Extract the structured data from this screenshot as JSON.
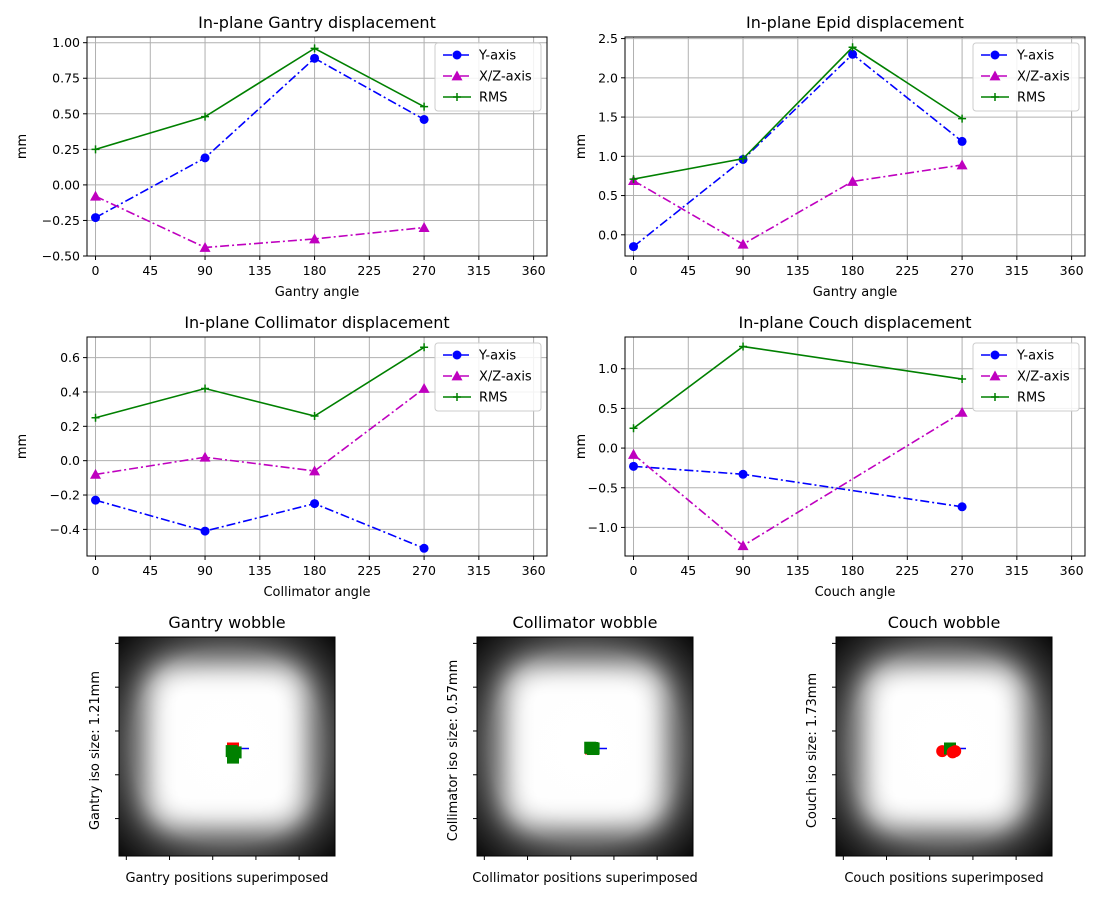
{
  "colors": {
    "y_axis": "#0000ff",
    "xz_axis": "#bf00bf",
    "rms": "#008000",
    "grid": "#b0b0b0",
    "wobble_red": "#ff0000",
    "wobble_green": "#008000",
    "wobble_blue": "#0000ff"
  },
  "chart_data": [
    {
      "type": "line",
      "title": "In-plane Gantry displacement",
      "xlabel": "Gantry angle",
      "ylabel": "mm",
      "xlim": [
        -7,
        371
      ],
      "ylim": [
        -0.5,
        1.04
      ],
      "xticks": [
        0,
        45,
        90,
        135,
        180,
        225,
        270,
        315,
        360
      ],
      "yticks": [
        -0.5,
        -0.25,
        0.0,
        0.25,
        0.5,
        0.75,
        1.0
      ],
      "ytick_labels": [
        "−0.50",
        "−0.25",
        "0.00",
        "0.25",
        "0.50",
        "0.75",
        "1.00"
      ],
      "grid": true,
      "legend": "top-right",
      "x": [
        0,
        90,
        180,
        270
      ],
      "series": [
        {
          "name": "Y-axis",
          "values": [
            -0.23,
            0.19,
            0.89,
            0.46
          ],
          "color": "#0000ff",
          "linestyle": "dashdot",
          "marker": "circle"
        },
        {
          "name": "X/Z-axis",
          "values": [
            -0.08,
            -0.44,
            -0.38,
            -0.3
          ],
          "color": "#bf00bf",
          "linestyle": "dashdot",
          "marker": "triangle"
        },
        {
          "name": "RMS",
          "values": [
            0.25,
            0.48,
            0.96,
            0.55
          ],
          "color": "#008000",
          "linestyle": "solid",
          "marker": "plus"
        }
      ]
    },
    {
      "type": "line",
      "title": "In-plane Epid displacement",
      "xlabel": "Gantry angle",
      "ylabel": "mm",
      "xlim": [
        -7,
        371
      ],
      "ylim": [
        -0.27,
        2.52
      ],
      "xticks": [
        0,
        45,
        90,
        135,
        180,
        225,
        270,
        315,
        360
      ],
      "yticks": [
        0.0,
        0.5,
        1.0,
        1.5,
        2.0,
        2.5
      ],
      "ytick_labels": [
        "0.0",
        "0.5",
        "1.0",
        "1.5",
        "2.0",
        "2.5"
      ],
      "grid": true,
      "legend": "top-right",
      "x": [
        0,
        90,
        180,
        270
      ],
      "series": [
        {
          "name": "Y-axis",
          "values": [
            -0.15,
            0.96,
            2.3,
            1.19
          ],
          "color": "#0000ff",
          "linestyle": "dashdot",
          "marker": "circle"
        },
        {
          "name": "X/Z-axis",
          "values": [
            0.69,
            -0.12,
            0.68,
            0.89
          ],
          "color": "#bf00bf",
          "linestyle": "dashdot",
          "marker": "triangle"
        },
        {
          "name": "RMS",
          "values": [
            0.71,
            0.97,
            2.39,
            1.48
          ],
          "color": "#008000",
          "linestyle": "solid",
          "marker": "plus"
        }
      ]
    },
    {
      "type": "line",
      "title": "In-plane Collimator displacement",
      "xlabel": "Collimator angle",
      "ylabel": "mm",
      "xlim": [
        -7,
        371
      ],
      "ylim": [
        -0.555,
        0.72
      ],
      "xticks": [
        0,
        45,
        90,
        135,
        180,
        225,
        270,
        315,
        360
      ],
      "yticks": [
        -0.4,
        -0.2,
        0.0,
        0.2,
        0.4,
        0.6
      ],
      "ytick_labels": [
        "−0.4",
        "−0.2",
        "0.0",
        "0.2",
        "0.4",
        "0.6"
      ],
      "grid": true,
      "legend": "top-right",
      "x": [
        0,
        90,
        180,
        270
      ],
      "series": [
        {
          "name": "Y-axis",
          "values": [
            -0.23,
            -0.41,
            -0.25,
            -0.51
          ],
          "color": "#0000ff",
          "linestyle": "dashdot",
          "marker": "circle"
        },
        {
          "name": "X/Z-axis",
          "values": [
            -0.08,
            0.02,
            -0.06,
            0.42
          ],
          "color": "#bf00bf",
          "linestyle": "dashdot",
          "marker": "triangle"
        },
        {
          "name": "RMS",
          "values": [
            0.25,
            0.42,
            0.26,
            0.66
          ],
          "color": "#008000",
          "linestyle": "solid",
          "marker": "plus"
        }
      ]
    },
    {
      "type": "line",
      "title": "In-plane Couch displacement",
      "xlabel": "Couch angle",
      "ylabel": "mm",
      "xlim": [
        -7,
        371
      ],
      "ylim": [
        -1.36,
        1.4
      ],
      "xticks": [
        0,
        45,
        90,
        135,
        180,
        225,
        270,
        315,
        360
      ],
      "yticks": [
        -1.0,
        -0.5,
        0.0,
        0.5,
        1.0
      ],
      "ytick_labels": [
        "−1.0",
        "−0.5",
        "0.0",
        "0.5",
        "1.0"
      ],
      "grid": true,
      "legend": "top-right",
      "x": [
        0,
        90,
        270
      ],
      "series": [
        {
          "name": "Y-axis",
          "values": [
            -0.23,
            -0.33,
            -0.74
          ],
          "color": "#0000ff",
          "linestyle": "dashdot",
          "marker": "circle"
        },
        {
          "name": "X/Z-axis",
          "values": [
            -0.08,
            -1.23,
            0.45
          ],
          "color": "#bf00bf",
          "linestyle": "dashdot",
          "marker": "triangle"
        },
        {
          "name": "RMS",
          "values": [
            0.25,
            1.28,
            0.87
          ],
          "color": "#008000",
          "linestyle": "solid",
          "marker": "plus"
        }
      ]
    }
  ],
  "wobble": [
    {
      "title": "Gantry wobble",
      "ylabel": "Gantry iso size: 1.21mm",
      "xlabel": "Gantry positions superimposed",
      "marker_shape": "square",
      "marker_color": "green",
      "red_marker_shape": "square",
      "centers": [
        [
          0.0,
          0.0
        ],
        [
          0.0,
          -0.2
        ],
        [
          0.1,
          -0.15
        ],
        [
          0.0,
          -0.35
        ],
        [
          -0.05,
          -0.1
        ]
      ]
    },
    {
      "title": "Collimator wobble",
      "ylabel": "Collimator iso size: 0.57mm",
      "xlabel": "Collimator positions superimposed",
      "marker_shape": "square",
      "marker_color": "green",
      "red_marker_shape": "square",
      "centers": [
        [
          0.0,
          0.0
        ],
        [
          0.05,
          0.02
        ],
        [
          0.1,
          0.0
        ],
        [
          -0.03,
          0.03
        ],
        [
          0.08,
          -0.02
        ]
      ]
    },
    {
      "title": "Couch wobble",
      "ylabel": "Couch iso size: 1.73mm",
      "xlabel": "Couch positions superimposed",
      "marker_shape": "circle",
      "marker_color": "red",
      "red_marker_shape": "circle",
      "centers": [
        [
          -0.3,
          -0.1
        ],
        [
          0.0,
          0.0
        ],
        [
          0.1,
          -0.15
        ],
        [
          0.2,
          -0.1
        ]
      ]
    }
  ]
}
